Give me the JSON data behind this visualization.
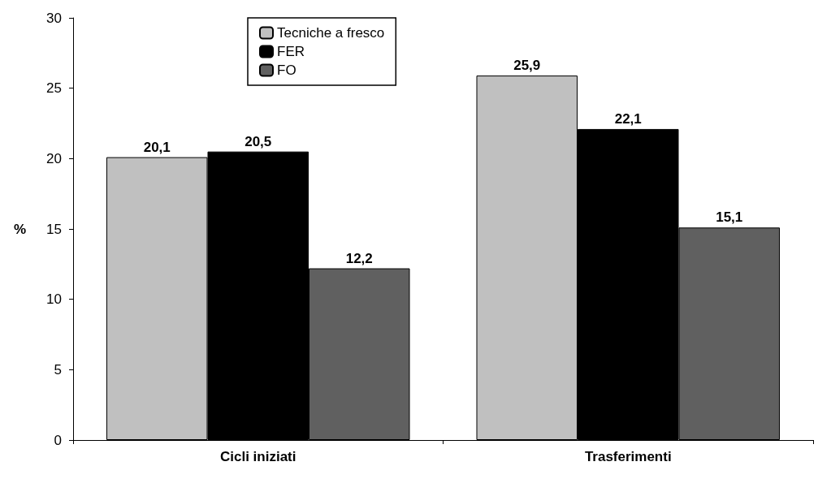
{
  "chart_data": {
    "type": "bar",
    "ylabel": "%",
    "categories": [
      "Cicli iniziati",
      "Trasferimenti"
    ],
    "series": [
      {
        "name": "Tecniche a fresco",
        "color": "#c0c0c0",
        "values": [
          20.1,
          25.9
        ],
        "value_labels": [
          "20,1",
          "25,9"
        ]
      },
      {
        "name": "FER",
        "color": "#000000",
        "values": [
          20.5,
          22.1
        ],
        "value_labels": [
          "20,5",
          "22,1"
        ]
      },
      {
        "name": "FO",
        "color": "#606060",
        "values": [
          12.2,
          15.1
        ],
        "value_labels": [
          "12,2",
          "15,1"
        ]
      }
    ],
    "ylim": [
      0,
      30
    ],
    "yticks": [
      0,
      5,
      10,
      15,
      20,
      25,
      30
    ],
    "grid": false,
    "legend": "top"
  }
}
